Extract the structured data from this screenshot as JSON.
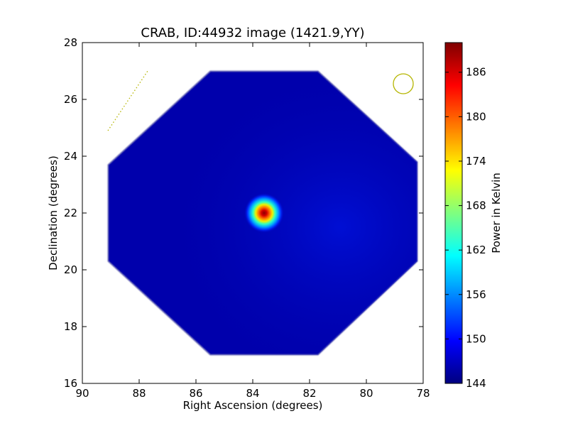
{
  "chart_data": {
    "type": "heatmap",
    "title": "CRAB, ID:44932 image (1421.9,YY)",
    "xlabel": "Right Ascension (degrees)",
    "ylabel": "Declination (degrees)",
    "xlim": [
      90,
      78
    ],
    "ylim": [
      16,
      28
    ],
    "x_ticks": [
      "90",
      "88",
      "86",
      "84",
      "82",
      "80",
      "78"
    ],
    "y_ticks": [
      "16",
      "18",
      "20",
      "22",
      "24",
      "26",
      "28"
    ],
    "colorbar": {
      "label": "Power in Kelvin",
      "colormap": "jet",
      "range": [
        144,
        190
      ],
      "ticks": [
        "144",
        "150",
        "156",
        "162",
        "168",
        "174",
        "180",
        "186"
      ]
    },
    "image": {
      "footprint": "octagon",
      "footprint_vertices_radec": [
        [
          85.5,
          27.0
        ],
        [
          81.7,
          27.0
        ],
        [
          78.2,
          23.8
        ],
        [
          78.2,
          20.3
        ],
        [
          81.7,
          17.0
        ],
        [
          85.5,
          17.0
        ],
        [
          89.1,
          20.3
        ],
        [
          89.1,
          23.7
        ]
      ],
      "background_level": 146,
      "source": {
        "ra": 83.6,
        "dec": 22.0,
        "peak": 190
      }
    },
    "annotations": [
      {
        "kind": "circle",
        "ra": 78.7,
        "dec": 26.55,
        "color": "#b5b500"
      },
      {
        "kind": "dotted-line",
        "from": [
          89.1,
          24.9
        ],
        "to": [
          87.7,
          27.0
        ],
        "color": "#b5b500"
      }
    ]
  }
}
